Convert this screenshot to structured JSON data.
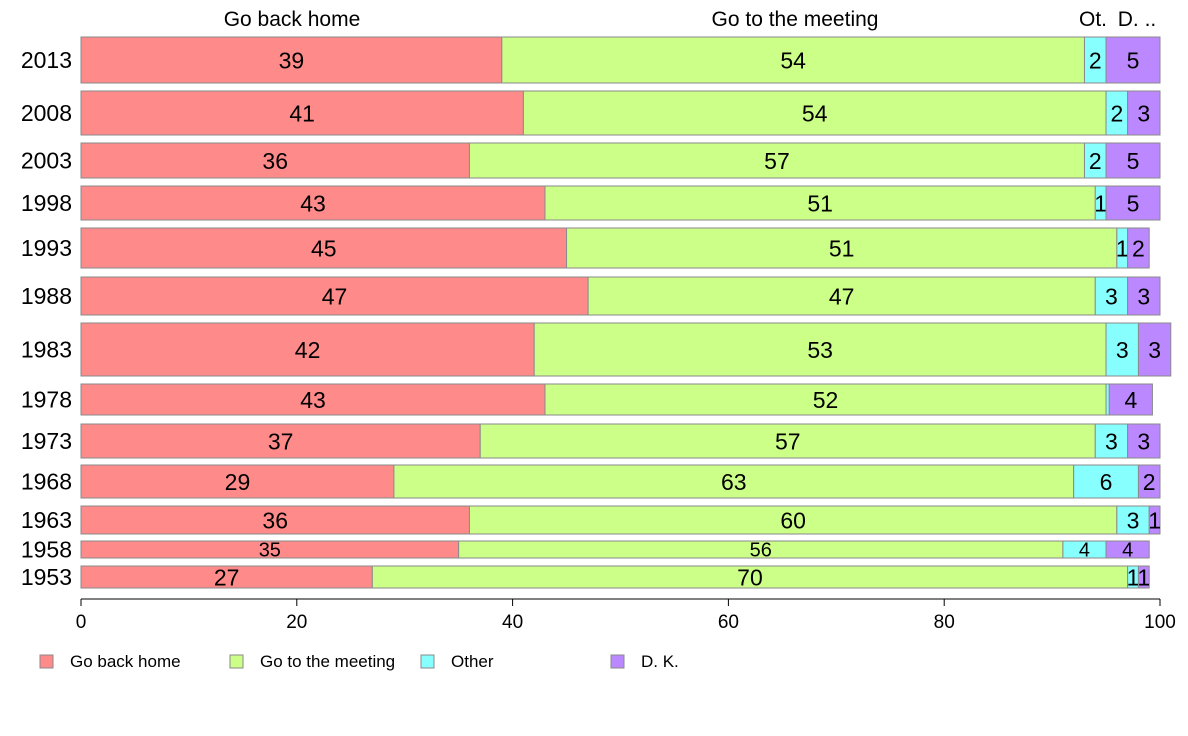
{
  "chart_data": {
    "type": "bar",
    "orientation": "horizontal",
    "stacked": true,
    "categories": [
      "2013",
      "2008",
      "2003",
      "1998",
      "1993",
      "1988",
      "1983",
      "1978",
      "1973",
      "1968",
      "1963",
      "1958",
      "1953"
    ],
    "series": [
      {
        "name": "Go back home",
        "color": "#FF8A8A",
        "values": [
          39,
          41,
          36,
          43,
          45,
          47,
          42,
          43,
          37,
          29,
          36,
          35,
          27
        ],
        "labels": [
          "39",
          "41",
          "36",
          "43",
          "45",
          "47",
          "42",
          "43",
          "37",
          "29",
          "36",
          "35",
          "27"
        ]
      },
      {
        "name": "Go to the meeting",
        "color": "#CCFF88",
        "values": [
          54,
          54,
          57,
          51,
          51,
          47,
          53,
          52,
          57,
          63,
          60,
          56,
          70
        ],
        "labels": [
          "54",
          "54",
          "57",
          "51",
          "51",
          "47",
          "53",
          "52",
          "57",
          "63",
          "60",
          "56",
          "70"
        ]
      },
      {
        "name": "Other",
        "color": "#88FFFF",
        "values": [
          2,
          2,
          2,
          1,
          1,
          3,
          3,
          0.3,
          3,
          6,
          3,
          4,
          1
        ],
        "labels": [
          "2",
          "2",
          "2",
          "1",
          "1",
          "3",
          "3",
          "",
          "3",
          "6",
          "3",
          "4",
          "1"
        ]
      },
      {
        "name": "D. K.",
        "color": "#BB88FF",
        "values": [
          5,
          3,
          5,
          5,
          2,
          3,
          3,
          4,
          3,
          2,
          1,
          4,
          1
        ],
        "labels": [
          "5",
          "3",
          "5",
          "5",
          "2",
          "3",
          "3",
          "4",
          "3",
          "2",
          "1",
          "4",
          "1"
        ]
      }
    ],
    "top_labels": [
      "Go back home",
      "Go to the meeting",
      "Ot.",
      "D. .."
    ],
    "x_ticks": [
      "0",
      "20",
      "40",
      "60",
      "80",
      "100"
    ],
    "xlim": [
      0,
      100
    ],
    "legend_position": "bottom",
    "grid": false
  }
}
